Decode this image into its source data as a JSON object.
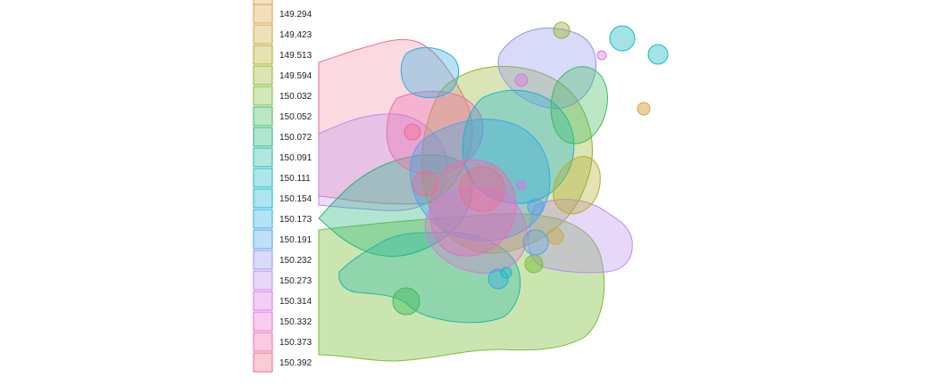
{
  "chart_data": {
    "type": "area",
    "title": "",
    "xlabel": "",
    "ylabel": "",
    "legend_position": "left",
    "grid": false,
    "legend": [
      {
        "label": "149.294",
        "color": "#D8A142"
      },
      {
        "label": "149.423",
        "color": "#C9A83A"
      },
      {
        "label": "149.513",
        "color": "#B4AC24"
      },
      {
        "label": "149.594",
        "color": "#96B12A"
      },
      {
        "label": "150.032",
        "color": "#7CBD3C"
      },
      {
        "label": "150.052",
        "color": "#3DBA5E"
      },
      {
        "label": "150.072",
        "color": "#22B57A"
      },
      {
        "label": "150.091",
        "color": "#22B8A0"
      },
      {
        "label": "150.111",
        "color": "#18B9C0"
      },
      {
        "label": "150.154",
        "color": "#18B5CF"
      },
      {
        "label": "150.173",
        "color": "#2AAFE0"
      },
      {
        "label": "150.191",
        "color": "#4EA3E6"
      },
      {
        "label": "150.232",
        "color": "#8F95EC"
      },
      {
        "label": "150.273",
        "color": "#B98BEE"
      },
      {
        "label": "150.314",
        "color": "#DB72E2"
      },
      {
        "label": "150.332",
        "color": "#EA6FD2"
      },
      {
        "label": "150.373",
        "color": "#EF6BAE"
      },
      {
        "label": "150.392",
        "color": "#EE6C8A"
      }
    ]
  }
}
